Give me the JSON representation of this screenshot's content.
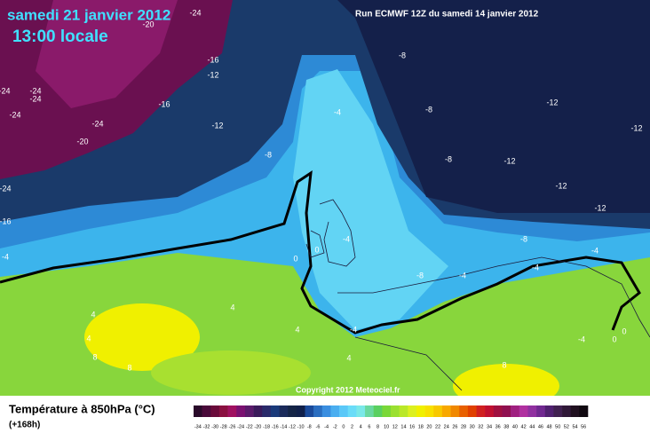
{
  "header": {
    "date": "samedi 21 janvier 2012",
    "time": "13:00 locale",
    "run": "Run ECMWF 12Z du samedi 14 janvier 2012"
  },
  "copyright": "Copyright 2012 Meteociel.fr",
  "legend": {
    "title": "Température à 850hPa (°C)",
    "subtitle": "(+168h)",
    "ticks": [
      -34,
      -32,
      -30,
      -28,
      -26,
      -24,
      -22,
      -20,
      -18,
      -16,
      -14,
      -12,
      -10,
      -8,
      -6,
      -4,
      -2,
      0,
      2,
      4,
      6,
      8,
      10,
      12,
      14,
      16,
      18,
      20,
      22,
      24,
      26,
      28,
      30,
      32,
      34,
      36,
      38,
      40,
      42,
      44,
      46,
      48,
      50,
      52,
      54,
      56
    ],
    "colors": [
      "#2a0a2a",
      "#4a0a3a",
      "#6a0a3a",
      "#8a1040",
      "#a01060",
      "#7a1070",
      "#5a1a6a",
      "#3a1a5a",
      "#2a2a6a",
      "#1a3a7a",
      "#1a2a5a",
      "#142446",
      "#10204a",
      "#1a4a9a",
      "#2a6ec0",
      "#3a8ee0",
      "#4aaef0",
      "#5ac8f8",
      "#6adcf8",
      "#7ae8e8",
      "#6ad8a0",
      "#5ad060",
      "#7ad838",
      "#9ae030",
      "#bae828",
      "#dcf020",
      "#f0f000",
      "#f8e000",
      "#f8c800",
      "#f8a800",
      "#f08800",
      "#e86000",
      "#e04000",
      "#d02020",
      "#c01030",
      "#a01040",
      "#901050",
      "#a02080",
      "#b030a0",
      "#9030a0",
      "#702890",
      "#502070",
      "#402050",
      "#301838",
      "#201020",
      "#100810"
    ]
  },
  "contour_labels": [
    -24,
    -20,
    -16,
    -12,
    -24,
    -24,
    -24,
    -24,
    -24,
    -20,
    -16,
    -12,
    -8,
    -8,
    -4,
    -8,
    -12,
    -12,
    -8,
    -12,
    -12,
    -12,
    -24,
    -16,
    -4,
    0,
    0,
    -4,
    -8,
    -8,
    -4,
    -4,
    -4,
    4,
    4,
    4,
    8,
    8,
    4,
    4,
    8,
    -4,
    0,
    0,
    -4
  ]
}
